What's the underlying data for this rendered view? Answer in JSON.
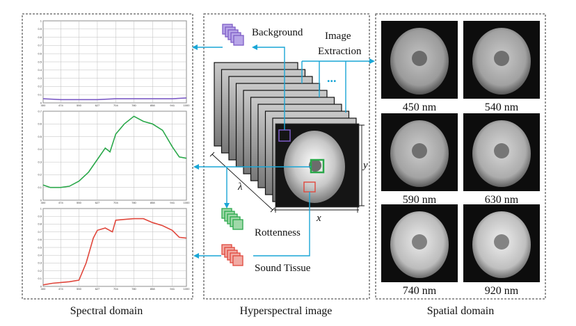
{
  "colors": {
    "arrow": "#19a6d6",
    "background_spectrum": "#7d5cc6",
    "rottenness_spectrum": "#2aa84a",
    "sound_spectrum": "#e0473c"
  },
  "panels": {
    "spectral": {
      "caption": "Spectral domain"
    },
    "hyperspectral": {
      "caption": "Hyperspectral image",
      "labels": {
        "background": "Background",
        "rottenness": "Rottenness",
        "sound": "Sound Tissue",
        "extraction_line1": "Image",
        "extraction_line2": "Extraction",
        "ellipsis": "...",
        "axis_x": "x",
        "axis_y": "y",
        "axis_lambda": "λ"
      }
    },
    "spatial": {
      "caption": "Spatial domain",
      "images": [
        {
          "label": "450 nm",
          "brightness": 0.55
        },
        {
          "label": "540 nm",
          "brightness": 0.6
        },
        {
          "label": "590 nm",
          "brightness": 0.62
        },
        {
          "label": "630 nm",
          "brightness": 0.7
        },
        {
          "label": "740 nm",
          "brightness": 0.85
        },
        {
          "label": "920 nm",
          "brightness": 0.88
        }
      ]
    }
  },
  "chart_data": [
    {
      "type": "line",
      "series_color": "#7d5cc6",
      "x_ticks": [
        "400",
        "474",
        "550",
        "627",
        "704",
        "780",
        "858",
        "941",
        "1000"
      ],
      "y_ticks": [
        "0",
        "0.1",
        "0.2",
        "0.3",
        "0.4",
        "0.5",
        "0.6",
        "0.7",
        "0.8",
        "0.9",
        "1"
      ],
      "ylim": [
        0,
        1
      ],
      "x": [
        400,
        474,
        550,
        627,
        704,
        780,
        858,
        941,
        1000
      ],
      "values": [
        0.05,
        0.04,
        0.04,
        0.04,
        0.05,
        0.05,
        0.05,
        0.05,
        0.06
      ]
    },
    {
      "type": "line",
      "series_color": "#2aa84a",
      "x_ticks": [
        "400",
        "474",
        "550",
        "627",
        "704",
        "780",
        "858",
        "941",
        "1000"
      ],
      "y_ticks": [
        "0",
        "0.1",
        "0.2",
        "0.3",
        "0.4",
        "0.5",
        "0.6",
        "0.7"
      ],
      "ylim": [
        0,
        0.7
      ],
      "x": [
        400,
        430,
        474,
        510,
        550,
        590,
        627,
        660,
        680,
        704,
        740,
        780,
        820,
        858,
        900,
        941,
        970,
        1000
      ],
      "values": [
        0.12,
        0.1,
        0.1,
        0.11,
        0.15,
        0.22,
        0.32,
        0.41,
        0.38,
        0.52,
        0.6,
        0.66,
        0.62,
        0.6,
        0.55,
        0.42,
        0.34,
        0.33
      ]
    },
    {
      "type": "line",
      "series_color": "#e0473c",
      "x_ticks": [
        "400",
        "474",
        "550",
        "627",
        "704",
        "780",
        "858",
        "941",
        "1000"
      ],
      "y_ticks": [
        "0",
        "0.1",
        "0.2",
        "0.3",
        "0.4",
        "0.5",
        "0.6",
        "0.7",
        "0.8",
        "0.9",
        "1"
      ],
      "ylim": [
        0,
        1
      ],
      "x": [
        400,
        440,
        474,
        510,
        550,
        580,
        610,
        627,
        660,
        690,
        704,
        740,
        780,
        820,
        858,
        900,
        941,
        970,
        1000
      ],
      "values": [
        0.02,
        0.04,
        0.05,
        0.06,
        0.08,
        0.3,
        0.62,
        0.72,
        0.75,
        0.7,
        0.85,
        0.86,
        0.87,
        0.87,
        0.82,
        0.78,
        0.72,
        0.63,
        0.62
      ]
    }
  ]
}
